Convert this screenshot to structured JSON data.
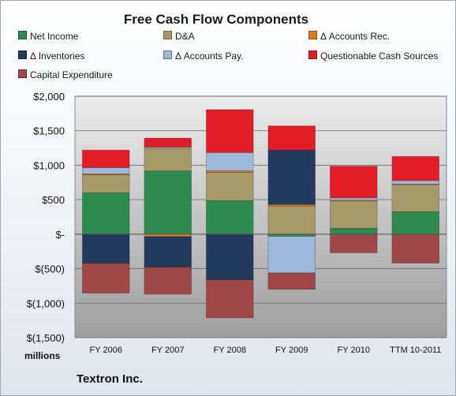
{
  "chart_data": {
    "type": "bar",
    "stacked": true,
    "title": "Free Cash Flow Components",
    "units_label": "millions",
    "footer": "Textron Inc.",
    "categories": [
      "FY 2006",
      "FY 2007",
      "FY 2008",
      "FY 2009",
      "FY 2010",
      "TTM 10-2011"
    ],
    "y_ticks": [
      "$2,000",
      "$1,500",
      "$1,000",
      "$500",
      "$-",
      "$(500)",
      "$(1,000)",
      "$(1,500)"
    ],
    "ylim": [
      -1500,
      2000
    ],
    "grid": true,
    "series": [
      {
        "name": "Net Income",
        "color": "#2e8b4f",
        "values": [
          601,
          917,
          486,
          -31,
          86,
          325
        ]
      },
      {
        "name": "D&A",
        "color": "#a69a68",
        "values": [
          259,
          324,
          412,
          407,
          395,
          392
        ]
      },
      {
        "name": "Δ Accounts Rec.",
        "color": "#e07b20",
        "values": [
          16,
          -36,
          21,
          23,
          13,
          10
        ]
      },
      {
        "name": "Δ Inventories",
        "color": "#223a5e",
        "values": [
          -423,
          -443,
          -662,
          790,
          0,
          0
        ]
      },
      {
        "name": "Δ Accounts Pay.",
        "color": "#9db8db",
        "values": [
          89,
          20,
          265,
          -530,
          32,
          50
        ]
      },
      {
        "name": "Questionable Cash Sources",
        "color": "#e21d26",
        "values": [
          254,
          132,
          622,
          350,
          460,
          350
        ]
      },
      {
        "name": "Capital Expenditure",
        "color": "#a04848",
        "values": [
          -430,
          -390,
          -550,
          -240,
          -270,
          -420
        ]
      }
    ]
  }
}
